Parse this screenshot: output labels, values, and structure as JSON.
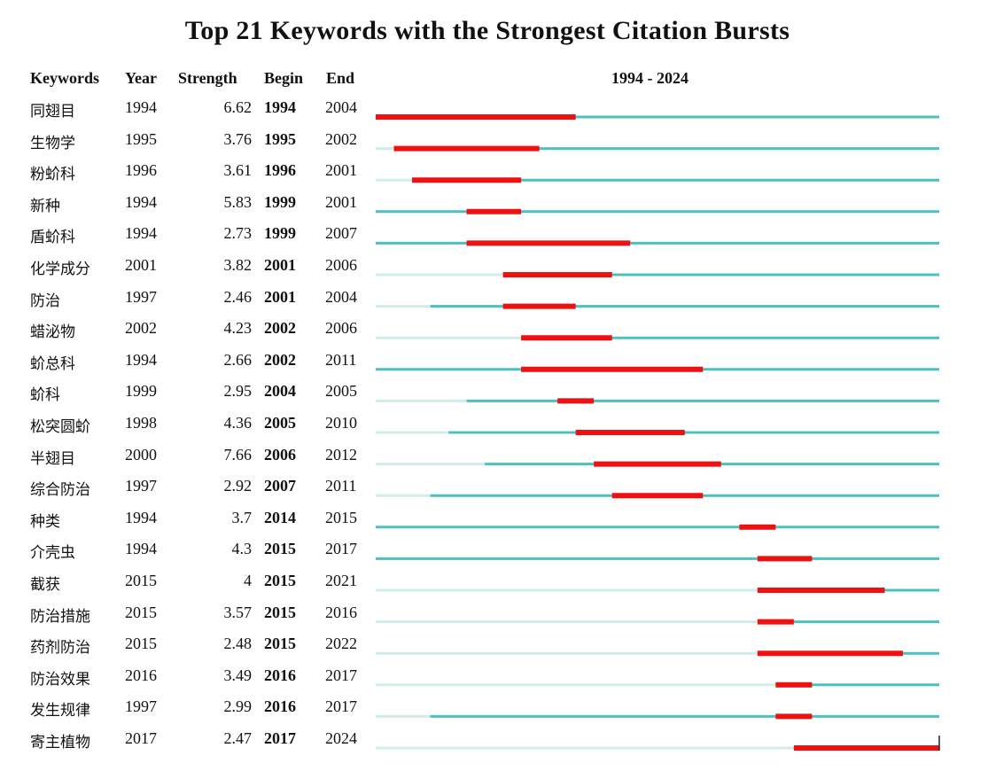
{
  "title": "Top 21 Keywords with the Strongest Citation Bursts",
  "headers": {
    "keywords": "Keywords",
    "year": "Year",
    "strength": "Strength",
    "begin": "Begin",
    "end": "End",
    "range": "1994 - 2024"
  },
  "colors": {
    "burst": "#ee1111",
    "active": "#4fc0c0",
    "inactive": "#d2ecec"
  },
  "chart_data": {
    "type": "table",
    "title": "Top 21 Keywords with the Strongest Citation Bursts",
    "xlim": [
      1994,
      2024
    ],
    "columns": [
      "Keywords",
      "Year",
      "Strength",
      "Begin",
      "End"
    ],
    "rows": [
      {
        "keyword": "同翅目",
        "year": 1994,
        "strength": "6.62",
        "begin": 1994,
        "end": 2004
      },
      {
        "keyword": "生物学",
        "year": 1995,
        "strength": "3.76",
        "begin": 1995,
        "end": 2002
      },
      {
        "keyword": "粉蚧科",
        "year": 1996,
        "strength": "3.61",
        "begin": 1996,
        "end": 2001
      },
      {
        "keyword": "新种",
        "year": 1994,
        "strength": "5.83",
        "begin": 1999,
        "end": 2001
      },
      {
        "keyword": "盾蚧科",
        "year": 1994,
        "strength": "2.73",
        "begin": 1999,
        "end": 2007
      },
      {
        "keyword": "化学成分",
        "year": 2001,
        "strength": "3.82",
        "begin": 2001,
        "end": 2006
      },
      {
        "keyword": "防治",
        "year": 1997,
        "strength": "2.46",
        "begin": 2001,
        "end": 2004
      },
      {
        "keyword": "蜡泌物",
        "year": 2002,
        "strength": "4.23",
        "begin": 2002,
        "end": 2006
      },
      {
        "keyword": "蚧总科",
        "year": 1994,
        "strength": "2.66",
        "begin": 2002,
        "end": 2011
      },
      {
        "keyword": "蚧科",
        "year": 1999,
        "strength": "2.95",
        "begin": 2004,
        "end": 2005
      },
      {
        "keyword": "松突圆蚧",
        "year": 1998,
        "strength": "4.36",
        "begin": 2005,
        "end": 2010
      },
      {
        "keyword": "半翅目",
        "year": 2000,
        "strength": "7.66",
        "begin": 2006,
        "end": 2012
      },
      {
        "keyword": "综合防治",
        "year": 1997,
        "strength": "2.92",
        "begin": 2007,
        "end": 2011
      },
      {
        "keyword": "种类",
        "year": 1994,
        "strength": "3.7",
        "begin": 2014,
        "end": 2015
      },
      {
        "keyword": "介壳虫",
        "year": 1994,
        "strength": "4.3",
        "begin": 2015,
        "end": 2017
      },
      {
        "keyword": "截获",
        "year": 2015,
        "strength": "4",
        "begin": 2015,
        "end": 2021
      },
      {
        "keyword": "防治措施",
        "year": 2015,
        "strength": "3.57",
        "begin": 2015,
        "end": 2016
      },
      {
        "keyword": "药剂防治",
        "year": 2015,
        "strength": "2.48",
        "begin": 2015,
        "end": 2022
      },
      {
        "keyword": "防治效果",
        "year": 2016,
        "strength": "3.49",
        "begin": 2016,
        "end": 2017
      },
      {
        "keyword": "发生规律",
        "year": 1997,
        "strength": "2.99",
        "begin": 2016,
        "end": 2017
      },
      {
        "keyword": "寄主植物",
        "year": 2017,
        "strength": "2.47",
        "begin": 2017,
        "end": 2024
      }
    ]
  }
}
